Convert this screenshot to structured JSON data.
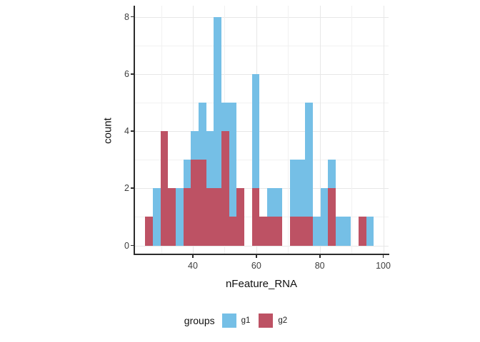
{
  "chart_data": {
    "type": "bar",
    "subtype": "overlaid-histogram",
    "title": "",
    "xlabel": "nFeature_RNA",
    "ylabel": "count",
    "bin_start": 25,
    "bin_width": 2.4,
    "x_ticks": [
      40,
      60,
      80,
      100
    ],
    "y_ticks": [
      0,
      2,
      4,
      6,
      8
    ],
    "x_gridlines_minor": [
      30,
      50,
      70,
      90
    ],
    "x_gridlines_major": [
      40,
      60,
      80,
      100
    ],
    "y_gridlines_minor": [
      1,
      3,
      5,
      7
    ],
    "y_gridlines_major": [
      0,
      2,
      4,
      6,
      8
    ],
    "xlim": [
      21.6,
      100.4
    ],
    "ylim": [
      -0.32,
      8.4
    ],
    "grid": true,
    "legend_position": "bottom",
    "series": [
      {
        "name": "g1",
        "color": "#75BFE6",
        "values": [
          0,
          2,
          0,
          0,
          2,
          3,
          4,
          5,
          4,
          8,
          5,
          5,
          0,
          0,
          6,
          0,
          2,
          2,
          0,
          3,
          3,
          5,
          1,
          2,
          3,
          1,
          1,
          0,
          0,
          1
        ]
      },
      {
        "name": "g2",
        "color": "#BD5264",
        "values": [
          1,
          0,
          4,
          2,
          0,
          2,
          3,
          3,
          2,
          2,
          4,
          1,
          2,
          0,
          2,
          1,
          1,
          1,
          0,
          1,
          1,
          1,
          0,
          0,
          2,
          0,
          0,
          0,
          1,
          0
        ]
      }
    ],
    "legend": {
      "title": "groups",
      "items": [
        {
          "label": "g1",
          "color": "#75BFE6"
        },
        {
          "label": "g2",
          "color": "#BD5264"
        }
      ]
    },
    "colors": {
      "axis_line": "#2b2b2b",
      "tick_text": "#3d3d3d",
      "title_text": "#111111",
      "grid_major": "#e7e7e7",
      "grid_minor": "#f1f1f1",
      "background": "#ffffff"
    }
  }
}
